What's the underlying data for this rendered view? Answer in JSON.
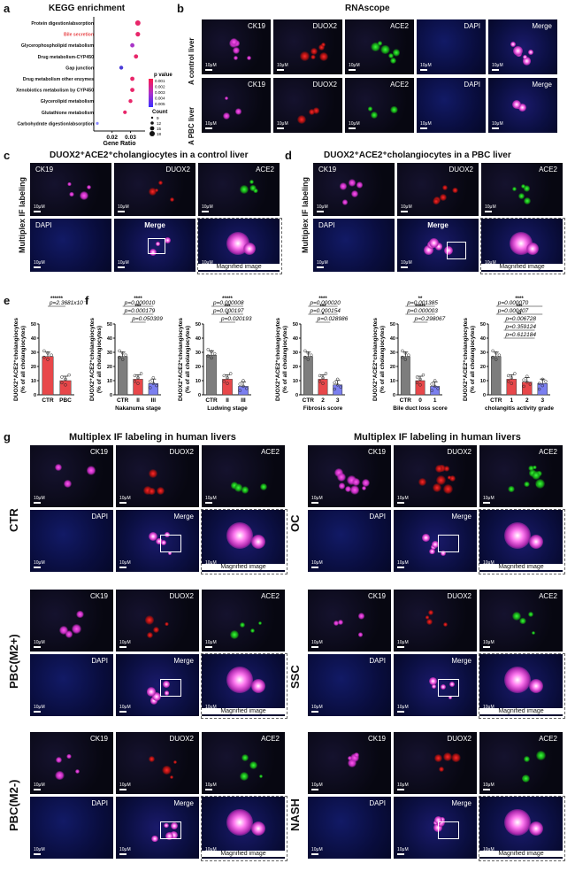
{
  "panel_letters": [
    "a",
    "b",
    "c",
    "d",
    "e",
    "f",
    "g"
  ],
  "kegg": {
    "title": "KEGG enrichment",
    "terms": [
      "Protein digestion/absorption",
      "Bile secretion",
      "Glycerophospholipid metabolism",
      "Drug metabolism-CYP450",
      "Gap junction",
      "Drug metabolism other enzymes",
      "Xenobiotics metabolism by CYP450",
      "Glycerolipid metabolism",
      "Glutathione metabolism",
      "Carbohydrate digestion/absorption"
    ],
    "xlabel": "Gene Ratio",
    "xticks": [
      "0.02",
      "0.03"
    ],
    "legend_p_title": "p value",
    "legend_p": [
      "0.001",
      "0.002",
      "0.003",
      "0.004",
      "0.005"
    ],
    "legend_count_title": "Count",
    "legend_count": [
      "9",
      "12",
      "15",
      "18"
    ]
  },
  "rnascope": {
    "title": "RNAscope",
    "rows": [
      "A control liver",
      "A PBC liver"
    ],
    "channels": [
      "CK19",
      "DUOX2",
      "ACE2",
      "DAPI",
      "Merge"
    ],
    "scale": "10μM"
  },
  "panel_c": {
    "title": "DUOX2⁺ACE2⁺cholangiocytes in a control liver"
  },
  "panel_d": {
    "title": "DUOX2⁺ACE2⁺cholangiocytes in a PBC liver"
  },
  "multiplex_label": "Multiplex IF labeling",
  "channels_if": [
    "CK19",
    "DUOX2",
    "ACE2",
    "DAPI",
    "Merge"
  ],
  "magnified": "Magnified image",
  "scale": "10μM",
  "ylabel": "DUOX2⁺ACE2⁺cholangiocytes",
  "ylabel2": "(% of all cholangiocytes)",
  "chart_data": [
    {
      "type": "bar",
      "id": "e",
      "categories": [
        "CTR",
        "PBC"
      ],
      "values": [
        27,
        10
      ],
      "ylim": [
        0,
        50
      ],
      "yticks": [
        "0",
        "10",
        "20",
        "30",
        "40",
        "50"
      ],
      "annotations": [
        "p=2.3681x10⁻⁷",
        "******"
      ],
      "colors": [
        "#e8474a",
        "#e8474a"
      ]
    },
    {
      "type": "bar",
      "id": "f1",
      "categories": [
        "CTR",
        "II",
        "III"
      ],
      "values": [
        27,
        11,
        8
      ],
      "xlabel": "Nakanuma stage",
      "ylim": [
        0,
        50
      ],
      "yticks": [
        "0",
        "10",
        "20",
        "30",
        "40",
        "50"
      ],
      "annotations": [
        "p=0.000010",
        "****",
        "p=0.000179",
        "***",
        "p=0.050309"
      ],
      "colors": [
        "#7d7d7d",
        "#e8474a",
        "#7b7ff0"
      ]
    },
    {
      "type": "bar",
      "id": "f2",
      "categories": [
        "CTR",
        "II",
        "III"
      ],
      "values": [
        28,
        11,
        6
      ],
      "xlabel": "Ludwing stage",
      "ylim": [
        0,
        50
      ],
      "yticks": [
        "0",
        "10",
        "20",
        "30",
        "40",
        "50"
      ],
      "annotations": [
        "p=0.000008",
        "*****",
        "p=0.000197",
        "***",
        "p=0.020193",
        "*"
      ],
      "colors": [
        "#7d7d7d",
        "#e8474a",
        "#7b7ff0"
      ]
    },
    {
      "type": "bar",
      "id": "f3",
      "categories": [
        "CTR",
        "2",
        "3"
      ],
      "values": [
        27,
        11,
        7
      ],
      "xlabel": "Fibrosis score",
      "ylim": [
        0,
        50
      ],
      "yticks": [
        "0",
        "10",
        "20",
        "30",
        "40",
        "50"
      ],
      "annotations": [
        "p=0.000020",
        "****",
        "p=0.000154",
        "***",
        "p=0.028986",
        "*"
      ],
      "colors": [
        "#7d7d7d",
        "#e8474a",
        "#7b7ff0"
      ]
    },
    {
      "type": "bar",
      "id": "f4",
      "categories": [
        "CTR",
        "0",
        "1"
      ],
      "values": [
        27,
        10,
        6
      ],
      "xlabel": "Bile duct loss score",
      "ylim": [
        0,
        50
      ],
      "yticks": [
        "0",
        "10",
        "20",
        "30",
        "40",
        "50"
      ],
      "annotations": [
        "p=0.001385",
        "**",
        "p=0.000003",
        "*****",
        "p=0.298067"
      ],
      "colors": [
        "#7d7d7d",
        "#e8474a",
        "#7b7ff0"
      ]
    },
    {
      "type": "bar",
      "id": "f5",
      "categories": [
        "CTR",
        "1",
        "2",
        "3"
      ],
      "values": [
        27,
        11,
        9,
        8
      ],
      "xlabel": "cholangitis activity grade",
      "ylim": [
        0,
        50
      ],
      "yticks": [
        "0",
        "10",
        "20",
        "30",
        "40",
        "50"
      ],
      "annotations": [
        "p=0.000070",
        "****",
        "p=0.000407",
        "***",
        "p=0.006728",
        "**",
        "p=0.359124",
        "p=0.612184"
      ],
      "colors": [
        "#7d7d7d",
        "#e8474a",
        "#e8474a",
        "#7b7ff0"
      ]
    }
  ],
  "panel_g": {
    "title_left": "Multiplex IF labeling in human livers",
    "title_right": "Multiplex IF labeling in human livers",
    "groups_left": [
      "CTR",
      "PBC(M2+)",
      "PBC(M2-)"
    ],
    "groups_right": [
      "OC",
      "SSC",
      "NASH"
    ]
  }
}
